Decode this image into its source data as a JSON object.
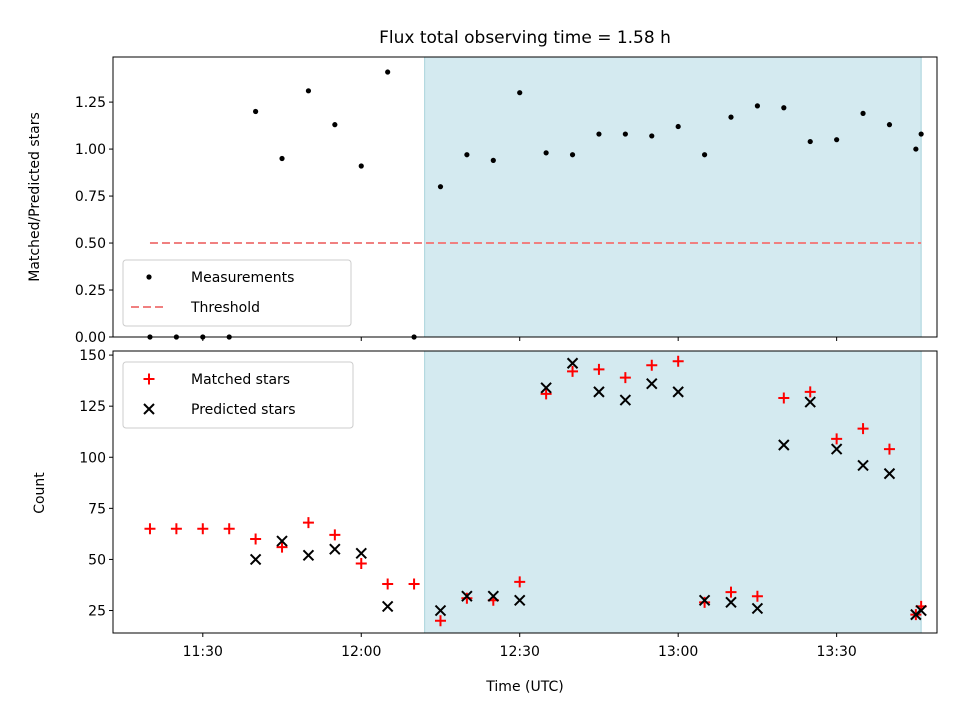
{
  "chart_data": [
    {
      "type": "scatter",
      "title": "Flux total observing time = 1.58 h",
      "ylabel": "Matched/Predicted stars",
      "xlabel": "",
      "xlim": [
        "11:13",
        "13:49"
      ],
      "ylim": [
        0,
        1.49
      ],
      "yticks": [
        "0.00",
        "0.25",
        "0.50",
        "0.75",
        "1.00",
        "1.25"
      ],
      "xticks": [
        "11:30",
        "12:00",
        "12:30",
        "13:00",
        "13:30"
      ],
      "highlight_range": [
        "12:12",
        "13:46"
      ],
      "highlight_color": "#d4eaf0",
      "legend_position": "lower-left",
      "series": [
        {
          "name": "Measurements",
          "marker": "dot",
          "color": "#000000",
          "x": [
            "11:20",
            "11:25",
            "11:30",
            "11:35",
            "11:40",
            "11:45",
            "11:50",
            "11:55",
            "12:00",
            "12:05",
            "12:10",
            "12:15",
            "12:20",
            "12:25",
            "12:30",
            "12:35",
            "12:40",
            "12:45",
            "12:50",
            "12:55",
            "13:00",
            "13:05",
            "13:10",
            "13:15",
            "13:20",
            "13:25",
            "13:30",
            "13:35",
            "13:40",
            "13:45",
            "13:46"
          ],
          "y": [
            0,
            0,
            0,
            0,
            1.2,
            0.95,
            1.31,
            1.13,
            0.91,
            1.41,
            0,
            0.8,
            0.97,
            0.94,
            1.3,
            0.98,
            0.97,
            1.08,
            1.08,
            1.07,
            1.12,
            0.97,
            1.17,
            1.23,
            1.22,
            1.04,
            1.05,
            1.19,
            1.13,
            1.0,
            1.08
          ]
        },
        {
          "name": "Threshold",
          "marker": "dashed-line",
          "color": "#f08080",
          "x": [
            "11:20",
            "13:46"
          ],
          "y": [
            0.5,
            0.5
          ]
        }
      ]
    },
    {
      "type": "scatter",
      "title": "",
      "ylabel": "Count",
      "xlabel": "Time (UTC)",
      "xlim": [
        "11:13",
        "13:49"
      ],
      "ylim": [
        14,
        152
      ],
      "yticks": [
        "25",
        "50",
        "75",
        "100",
        "125",
        "150"
      ],
      "xticks": [
        "11:30",
        "12:00",
        "12:30",
        "13:00",
        "13:30"
      ],
      "highlight_range": [
        "12:12",
        "13:46"
      ],
      "highlight_color": "#d4eaf0",
      "legend_position": "upper-left",
      "series": [
        {
          "name": "Matched stars",
          "marker": "plus",
          "color": "#ff0000",
          "x": [
            "11:20",
            "11:25",
            "11:30",
            "11:35",
            "11:40",
            "11:45",
            "11:50",
            "11:55",
            "12:00",
            "12:05",
            "12:10",
            "12:15",
            "12:20",
            "12:25",
            "12:30",
            "12:35",
            "12:40",
            "12:45",
            "12:50",
            "12:55",
            "13:00",
            "13:05",
            "13:10",
            "13:15",
            "13:20",
            "13:25",
            "13:30",
            "13:35",
            "13:40",
            "13:45",
            "13:46"
          ],
          "y": [
            65,
            65,
            65,
            65,
            60,
            56,
            68,
            62,
            48,
            38,
            38,
            20,
            31,
            30,
            39,
            131,
            142,
            143,
            139,
            145,
            147,
            29,
            34,
            32,
            129,
            132,
            109,
            114,
            104,
            23,
            27
          ]
        },
        {
          "name": "Predicted stars",
          "marker": "x",
          "color": "#000000",
          "x": [
            "11:40",
            "11:45",
            "11:50",
            "11:55",
            "12:00",
            "12:05",
            "12:15",
            "12:20",
            "12:25",
            "12:30",
            "12:35",
            "12:40",
            "12:45",
            "12:50",
            "12:55",
            "13:00",
            "13:05",
            "13:10",
            "13:15",
            "13:20",
            "13:25",
            "13:30",
            "13:35",
            "13:40",
            "13:45",
            "13:46"
          ],
          "y": [
            50,
            59,
            52,
            55,
            53,
            27,
            25,
            32,
            32,
            30,
            134,
            146,
            132,
            128,
            136,
            132,
            30,
            29,
            26,
            106,
            127,
            104,
            96,
            92,
            23,
            25
          ]
        }
      ]
    }
  ]
}
